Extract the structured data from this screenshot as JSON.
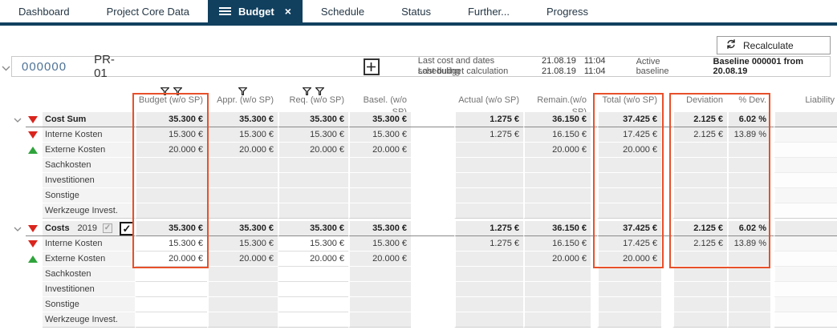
{
  "tab_bar": {
    "tabs": [
      {
        "label": "Dashboard",
        "active": false
      },
      {
        "label": "Project Core Data",
        "active": false
      },
      {
        "label": "Budget",
        "active": true
      },
      {
        "label": "Schedule",
        "active": false
      },
      {
        "label": "Status",
        "active": false
      },
      {
        "label": "Further...",
        "active": false
      },
      {
        "label": "Progress",
        "active": false
      }
    ]
  },
  "toolbar": {
    "recalculate_label": "Recalculate"
  },
  "project_bar": {
    "id": "000000",
    "code": "PR-01",
    "info_rows": [
      {
        "label": "Last cost and dates scheduling",
        "date": "21.08.19",
        "time": "11:04"
      },
      {
        "label": "Last budget calculation",
        "date": "21.08.19",
        "time": "11:04"
      }
    ],
    "active_baseline_label": "Active baseline",
    "baseline_value": "Baseline 000001 from 20.08.19"
  },
  "table": {
    "highlight_color": "#e8502a",
    "columns": [
      "Budget (w/o SP)",
      "Appr. (w/o SP)",
      "Req. (w/o SP)",
      "Basel. (w/o SP)",
      "Actual (w/o SP)",
      "Remain.(w/o SP)",
      "Total (w/o SP)",
      "Deviation",
      "% Dev.",
      "Liability"
    ],
    "filter_icon_counts": [
      2,
      1,
      2,
      0,
      0,
      0,
      0,
      0,
      0,
      0
    ],
    "groups": [
      {
        "label": "Cost Sum",
        "icon": "red-down",
        "header_cells": [
          "35.300 €",
          "35.300 €",
          "35.300 €",
          "35.300 €",
          "1.275 €",
          "36.150 €",
          "37.425 €",
          "2.125 €",
          "6.02 %",
          ""
        ],
        "rows": [
          {
            "label": "Interne Kosten",
            "icon": "red-down",
            "cells": [
              "15.300 €",
              "15.300 €",
              "15.300 €",
              "15.300 €",
              "1.275 €",
              "16.150 €",
              "17.425 €",
              "2.125 €",
              "13.89 %",
              ""
            ]
          },
          {
            "label": "Externe Kosten",
            "icon": "green-up",
            "cells": [
              "20.000 €",
              "20.000 €",
              "20.000 €",
              "20.000 €",
              "",
              "20.000 €",
              "20.000 €",
              "",
              "",
              ""
            ]
          },
          {
            "label": "Sachkosten",
            "icon": "",
            "cells": [
              "",
              "",
              "",
              "",
              "",
              "",
              "",
              "",
              "",
              ""
            ]
          },
          {
            "label": "Investitionen",
            "icon": "",
            "cells": [
              "",
              "",
              "",
              "",
              "",
              "",
              "",
              "",
              "",
              ""
            ]
          },
          {
            "label": "Sonstige",
            "icon": "",
            "cells": [
              "",
              "",
              "",
              "",
              "",
              "",
              "",
              "",
              "",
              ""
            ]
          },
          {
            "label": "Werkzeuge Invest.",
            "icon": "",
            "cells": [
              "",
              "",
              "",
              "",
              "",
              "",
              "",
              "",
              "",
              ""
            ]
          }
        ]
      },
      {
        "label": "Costs",
        "year": "2019",
        "icon": "red-down",
        "checkbox_small_checked": true,
        "checkbox_large_checked": true,
        "editable_cols": [
          0,
          2
        ],
        "header_cells": [
          "35.300 €",
          "35.300 €",
          "35.300 €",
          "35.300 €",
          "1.275 €",
          "36.150 €",
          "37.425 €",
          "2.125 €",
          "6.02 %",
          ""
        ],
        "rows": [
          {
            "label": "Interne Kosten",
            "icon": "red-down",
            "cells": [
              "15.300 €",
              "15.300 €",
              "15.300 €",
              "15.300 €",
              "1.275 €",
              "16.150 €",
              "17.425 €",
              "2.125 €",
              "13.89 %",
              ""
            ]
          },
          {
            "label": "Externe Kosten",
            "icon": "green-up",
            "cells": [
              "20.000 €",
              "20.000 €",
              "20.000 €",
              "20.000 €",
              "",
              "20.000 €",
              "20.000 €",
              "",
              "",
              ""
            ]
          },
          {
            "label": "Sachkosten",
            "icon": "",
            "cells": [
              "",
              "",
              "",
              "",
              "",
              "",
              "",
              "",
              "",
              ""
            ]
          },
          {
            "label": "Investitionen",
            "icon": "",
            "cells": [
              "",
              "",
              "",
              "",
              "",
              "",
              "",
              "",
              "",
              ""
            ]
          },
          {
            "label": "Sonstige",
            "icon": "",
            "cells": [
              "",
              "",
              "",
              "",
              "",
              "",
              "",
              "",
              "",
              ""
            ]
          },
          {
            "label": "Werkzeuge Invest.",
            "icon": "",
            "cells": [
              "",
              "",
              "",
              "",
              "",
              "",
              "",
              "",
              "",
              ""
            ]
          }
        ]
      }
    ]
  }
}
